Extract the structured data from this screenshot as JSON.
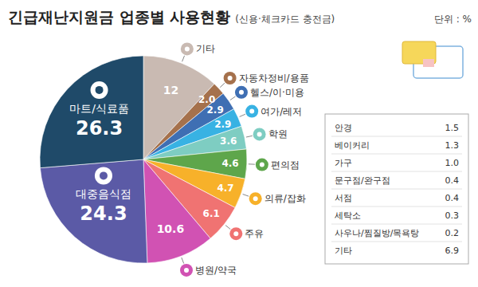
{
  "chart_data": {
    "type": "pie",
    "title": "긴급재난지원금 업종별 사용현황",
    "subtitle": "(신용·체크카드 충전금)",
    "unit": "단위 : %",
    "categories": [
      "기타",
      "자동차정비/용품",
      "헬스/이·미용",
      "여가/레저",
      "학원",
      "편의점",
      "의류/잡화",
      "주유",
      "병원/약국",
      "대중음식점",
      "마트/식료품"
    ],
    "values": [
      12,
      2.0,
      2.9,
      2.9,
      3.6,
      4.6,
      4.7,
      6.1,
      10.6,
      24.3,
      26.3
    ],
    "value_labels": [
      "12",
      "2.0",
      "2.9",
      "2.9",
      "3.6",
      "4.6",
      "4.7",
      "6.1",
      "10.6",
      "24.3",
      "26.3"
    ],
    "colors": [
      "#c9bab2",
      "#a5714c",
      "#3f6fb3",
      "#38b2e3",
      "#7ecdc2",
      "#5ea64b",
      "#f7b12a",
      "#f07372",
      "#d152b3",
      "#5b5aa6",
      "#1f4a69"
    ],
    "data_labels": true,
    "detail": {
      "rows": [
        [
          "안경",
          "1.5"
        ],
        [
          "베이커리",
          "1.3"
        ],
        [
          "가구",
          "1.0"
        ],
        [
          "문구점/완구점",
          "0.4"
        ],
        [
          "서점",
          "0.4"
        ],
        [
          "세탁소",
          "0.3"
        ],
        [
          "사우나/찜질방/목욕탕",
          "0.2"
        ],
        [
          "기타",
          "6.9"
        ]
      ]
    }
  }
}
